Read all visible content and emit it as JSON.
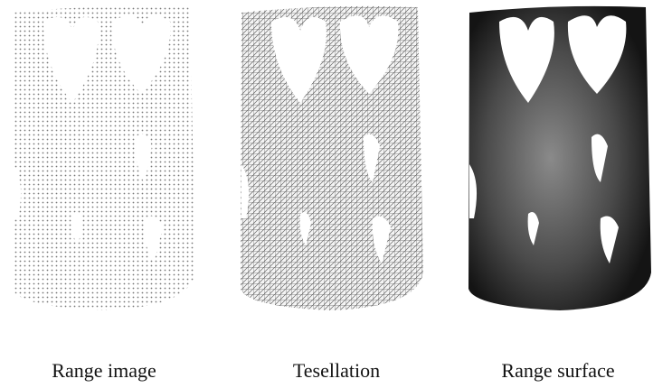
{
  "panels": [
    {
      "caption": "Range image"
    },
    {
      "caption": "Tesellation"
    },
    {
      "caption": "Range surface"
    }
  ]
}
